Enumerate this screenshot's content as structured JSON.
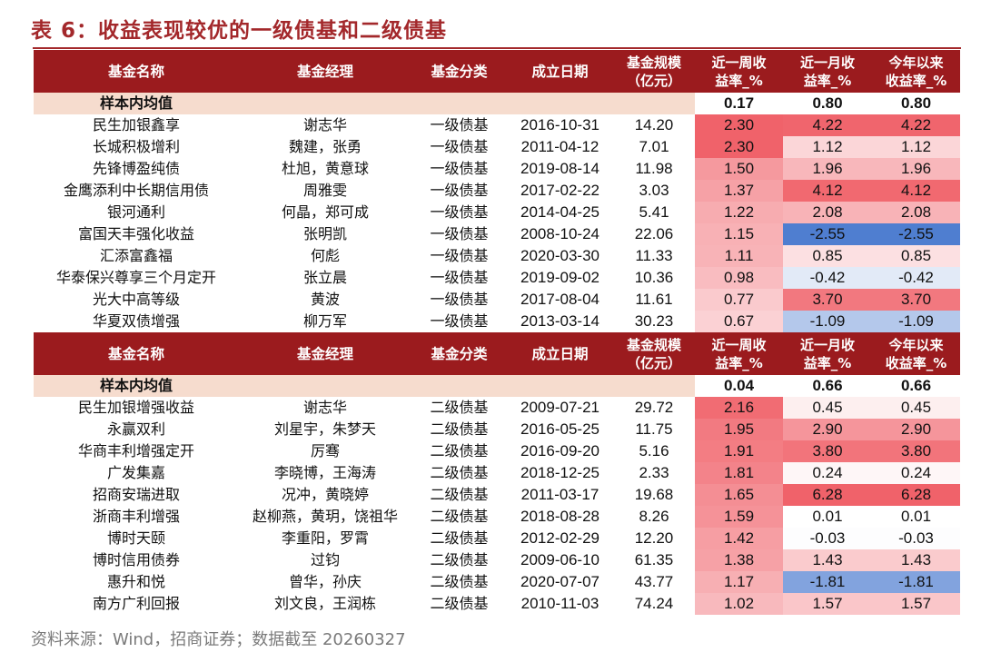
{
  "title": "表 6：收益表现较优的一级债基和二级债基",
  "colors": {
    "header_bg": "#9B1B1E",
    "accent": "#A3282B",
    "avg_row_bg": "#F6DCCE",
    "positive": "#F0626A",
    "negative": "#4F7ED0"
  },
  "header": {
    "name": "基金名称",
    "manager": "基金经理",
    "category": "基金分类",
    "date": "成立日期",
    "size_line1": "基金规模",
    "size_line2": "（亿元）",
    "week_line1": "近一周收",
    "week_line2": "益率_%",
    "month_line1": "近一月收",
    "month_line2": "益率_%",
    "ytd_line1": "今年以来",
    "ytd_line2": "收益率_%"
  },
  "sections": [
    {
      "avg": {
        "label": "样本内均值",
        "week": "0.17",
        "month": "0.80",
        "ytd": "0.80"
      },
      "rows": [
        {
          "name": "民生加银鑫享",
          "manager": "谢志华",
          "category": "一级债基",
          "date": "2016-10-31",
          "size": "14.20",
          "week": "2.30",
          "month": "4.22",
          "ytd": "4.22"
        },
        {
          "name": "长城积极增利",
          "manager": "魏建，张勇",
          "category": "一级债基",
          "date": "2011-04-12",
          "size": "7.01",
          "week": "2.30",
          "month": "1.12",
          "ytd": "1.12"
        },
        {
          "name": "先锋博盈纯债",
          "manager": "杜旭，黄意球",
          "category": "一级债基",
          "date": "2019-08-14",
          "size": "11.98",
          "week": "1.50",
          "month": "1.96",
          "ytd": "1.96"
        },
        {
          "name": "金鹰添利中长期信用债",
          "manager": "周雅雯",
          "category": "一级债基",
          "date": "2017-02-22",
          "size": "3.03",
          "week": "1.37",
          "month": "4.12",
          "ytd": "4.12"
        },
        {
          "name": "银河通利",
          "manager": "何晶，郑可成",
          "category": "一级债基",
          "date": "2014-04-25",
          "size": "5.41",
          "week": "1.22",
          "month": "2.08",
          "ytd": "2.08"
        },
        {
          "name": "富国天丰强化收益",
          "manager": "张明凯",
          "category": "一级债基",
          "date": "2008-10-24",
          "size": "22.06",
          "week": "1.15",
          "month": "-2.55",
          "ytd": "-2.55"
        },
        {
          "name": "汇添富鑫福",
          "manager": "何彪",
          "category": "一级债基",
          "date": "2020-03-30",
          "size": "11.33",
          "week": "1.11",
          "month": "0.85",
          "ytd": "0.85"
        },
        {
          "name": "华泰保兴尊享三个月定开",
          "manager": "张立晨",
          "category": "一级债基",
          "date": "2019-09-02",
          "size": "10.36",
          "week": "0.98",
          "month": "-0.42",
          "ytd": "-0.42"
        },
        {
          "name": "光大中高等级",
          "manager": "黄波",
          "category": "一级债基",
          "date": "2017-08-04",
          "size": "11.61",
          "week": "0.77",
          "month": "3.70",
          "ytd": "3.70"
        },
        {
          "name": "华夏双债增强",
          "manager": "柳万军",
          "category": "一级债基",
          "date": "2013-03-14",
          "size": "30.23",
          "week": "0.67",
          "month": "-1.09",
          "ytd": "-1.09"
        }
      ]
    },
    {
      "avg": {
        "label": "样本内均值",
        "week": "0.04",
        "month": "0.66",
        "ytd": "0.66"
      },
      "rows": [
        {
          "name": "民生加银增强收益",
          "manager": "谢志华",
          "category": "二级债基",
          "date": "2009-07-21",
          "size": "29.72",
          "week": "2.16",
          "month": "0.45",
          "ytd": "0.45"
        },
        {
          "name": "永赢双利",
          "manager": "刘星宇，朱梦天",
          "category": "二级债基",
          "date": "2016-05-25",
          "size": "11.75",
          "week": "1.95",
          "month": "2.90",
          "ytd": "2.90"
        },
        {
          "name": "华商丰利增强定开",
          "manager": "厉骞",
          "category": "二级债基",
          "date": "2016-09-20",
          "size": "5.16",
          "week": "1.91",
          "month": "3.80",
          "ytd": "3.80"
        },
        {
          "name": "广发集嘉",
          "manager": "李晓博，王海涛",
          "category": "二级债基",
          "date": "2018-12-25",
          "size": "2.33",
          "week": "1.81",
          "month": "0.24",
          "ytd": "0.24"
        },
        {
          "name": "招商安瑞进取",
          "manager": "况冲，黄晓婷",
          "category": "二级债基",
          "date": "2011-03-17",
          "size": "19.68",
          "week": "1.65",
          "month": "6.28",
          "ytd": "6.28"
        },
        {
          "name": "浙商丰利增强",
          "manager": "赵柳燕，黄玥，饶祖华",
          "category": "二级债基",
          "date": "2018-08-28",
          "size": "8.26",
          "week": "1.59",
          "month": "0.01",
          "ytd": "0.01"
        },
        {
          "name": "博时天颐",
          "manager": "李重阳，罗霄",
          "category": "二级债基",
          "date": "2012-02-29",
          "size": "12.20",
          "week": "1.42",
          "month": "-0.03",
          "ytd": "-0.03"
        },
        {
          "name": "博时信用债券",
          "manager": "过钧",
          "category": "二级债基",
          "date": "2009-06-10",
          "size": "61.35",
          "week": "1.38",
          "month": "1.43",
          "ytd": "1.43"
        },
        {
          "name": "惠升和悦",
          "manager": "曾华，孙庆",
          "category": "二级债基",
          "date": "2020-07-07",
          "size": "43.77",
          "week": "1.17",
          "month": "-1.81",
          "ytd": "-1.81"
        },
        {
          "name": "南方广利回报",
          "manager": "刘文良，王润栋",
          "category": "二级债基",
          "date": "2010-11-03",
          "size": "74.24",
          "week": "1.02",
          "month": "1.57",
          "ytd": "1.57"
        }
      ]
    }
  ],
  "footer": "资料来源：Wind，招商证券；数据截至 20260327"
}
